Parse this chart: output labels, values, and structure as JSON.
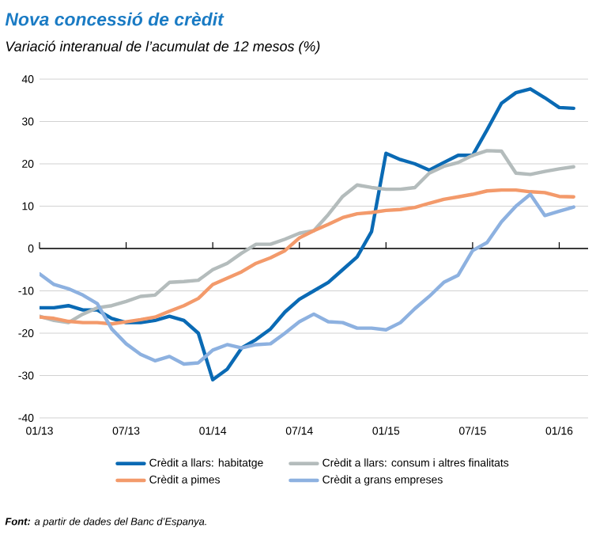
{
  "chart_data": {
    "type": "line",
    "title": "Nova concessió de crèdit",
    "subtitle": "Variació interanual de l’acumulat de 12 mesos (%)",
    "x": [
      "2013-01",
      "2013-02",
      "2013-03",
      "2013-04",
      "2013-05",
      "2013-06",
      "2013-07",
      "2013-08",
      "2013-09",
      "2013-10",
      "2013-11",
      "2013-12",
      "2014-01",
      "2014-02",
      "2014-03",
      "2014-04",
      "2014-05",
      "2014-06",
      "2014-07",
      "2014-08",
      "2014-09",
      "2014-10",
      "2014-11",
      "2014-12",
      "2015-01",
      "2015-02",
      "2015-03",
      "2015-04",
      "2015-05",
      "2015-06",
      "2015-07",
      "2015-08",
      "2015-09",
      "2015-10",
      "2015-11",
      "2015-12",
      "2016-01",
      "2016-02"
    ],
    "series": [
      {
        "name": "Crèdit a llars: habitatge",
        "color": "#0a6ab4",
        "values": [
          -14,
          -14,
          -13.5,
          -14.5,
          -14.5,
          -16.5,
          -17.5,
          -17.5,
          -17,
          -16,
          -17,
          -20,
          -31,
          -28.5,
          -23.5,
          -21.5,
          -19,
          -15,
          -12,
          -10,
          -8,
          -5,
          -2,
          4,
          22.5,
          21,
          20,
          18.5,
          20.3,
          22,
          22,
          28,
          34.3,
          36.8,
          37.7,
          35.6,
          33.3,
          33.1
        ]
      },
      {
        "name": "Crèdit a llars: consum i altres finalitats",
        "color": "#b4bcbc",
        "values": [
          -16,
          -17,
          -17.5,
          -15.5,
          -14,
          -13.5,
          -12.5,
          -11.3,
          -11,
          -8,
          -7.8,
          -7.5,
          -5,
          -3.5,
          -1.1,
          1,
          1,
          2.2,
          3.6,
          4.2,
          8,
          12.3,
          15,
          14.4,
          14,
          14,
          14.4,
          17.8,
          19.4,
          20.3,
          22,
          23.1,
          23,
          17.8,
          17.5,
          18.2,
          18.8,
          19.3
        ]
      },
      {
        "name": "Crèdit a pimes",
        "color": "#f39a6b",
        "values": [
          -16.2,
          -16.5,
          -17.2,
          -17.5,
          -17.5,
          -17.8,
          -17.3,
          -16.8,
          -16.2,
          -14.8,
          -13.5,
          -11.8,
          -8.5,
          -7,
          -5.5,
          -3.5,
          -2.2,
          -0.5,
          2.5,
          4.2,
          5.7,
          7.3,
          8.2,
          8.5,
          9,
          9.2,
          9.7,
          10.7,
          11.6,
          12.2,
          12.8,
          13.6,
          13.8,
          13.8,
          13.4,
          13.2,
          12.3,
          12.2
        ]
      },
      {
        "name": "Crèdit a grans empreses",
        "color": "#8db1e0",
        "values": [
          -6,
          -8.5,
          -9.5,
          -11,
          -13,
          -19,
          -22.5,
          -25,
          -26.5,
          -25.5,
          -27.3,
          -27,
          -24,
          -22.7,
          -23.5,
          -22.7,
          -22.5,
          -20,
          -17.3,
          -15.5,
          -17.3,
          -17.5,
          -18.8,
          -18.8,
          -19.2,
          -17.5,
          -14.2,
          -11.3,
          -8,
          -6.3,
          -0.5,
          1.4,
          6.3,
          10,
          12.8,
          7.8,
          8.8,
          9.8
        ]
      }
    ],
    "xlim": [
      "2013-01",
      "2016-03"
    ],
    "xticks": [
      {
        "value": "2013-01",
        "label": "01/13"
      },
      {
        "value": "2013-07",
        "label": "07/13"
      },
      {
        "value": "2014-01",
        "label": "01/14"
      },
      {
        "value": "2014-07",
        "label": "07/14"
      },
      {
        "value": "2015-01",
        "label": "01/15"
      },
      {
        "value": "2015-07",
        "label": "07/15"
      },
      {
        "value": "2016-01",
        "label": "01/16"
      }
    ],
    "ylim": [
      -40,
      40
    ],
    "yticks": [
      -40,
      -30,
      -20,
      -10,
      0,
      10,
      20,
      30,
      40
    ],
    "grid": "y",
    "legend": "bottom",
    "marker": "none",
    "line_style": "solid",
    "annotations": [
      "**Font:** a partir de dades del Banc d’Espanya."
    ]
  }
}
